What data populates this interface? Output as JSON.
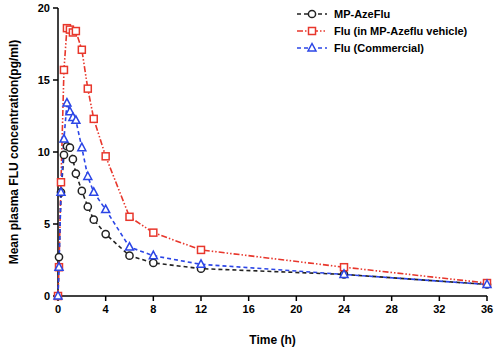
{
  "chart_data": {
    "type": "line",
    "x_label": "Time (h)",
    "y_label": "Mean plasma FLU concentration(pg/ml)",
    "x": [
      0,
      0.083,
      0.25,
      0.5,
      0.75,
      1,
      1.25,
      1.5,
      2,
      2.5,
      3,
      4,
      6,
      8,
      12,
      24,
      36
    ],
    "series": [
      {
        "name": "MP-AzeFlu",
        "color": "#222222",
        "marker": "circle",
        "line_style": "dashed",
        "values": [
          0,
          2.7,
          7.2,
          9.8,
          10.4,
          10.3,
          9.5,
          8.5,
          7.3,
          6.2,
          5.3,
          4.3,
          2.8,
          2.3,
          1.9,
          1.5,
          0.8
        ]
      },
      {
        "name": "Flu (in MP-Azeflu vehicle)",
        "color": "#e8372c",
        "marker": "square",
        "line_style": "dash-dot-dot",
        "values": [
          0,
          2.0,
          7.9,
          15.7,
          18.6,
          18.5,
          18.3,
          18.4,
          17.1,
          14.4,
          12.3,
          9.7,
          5.5,
          4.4,
          3.2,
          2.0,
          0.9
        ]
      },
      {
        "name": "Flu (Commercial)",
        "color": "#2b45e6",
        "marker": "triangle",
        "line_style": "dashed",
        "values": [
          0,
          2.0,
          7.2,
          10.9,
          13.4,
          12.8,
          12.4,
          12.2,
          10.3,
          8.3,
          7.2,
          6.0,
          3.4,
          2.8,
          2.2,
          1.5,
          0.8
        ]
      }
    ],
    "xlim": [
      0,
      36
    ],
    "xticks": [
      0,
      4,
      8,
      12,
      16,
      20,
      24,
      28,
      32,
      36
    ],
    "ylim": [
      0,
      20
    ],
    "yticks": [
      0,
      5,
      10,
      15,
      20
    ],
    "grid": false,
    "legend": "top-right"
  }
}
